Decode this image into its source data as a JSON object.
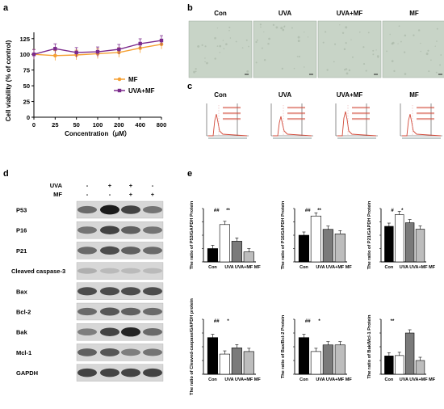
{
  "panel_labels": {
    "a": "a",
    "b": "b",
    "c": "c",
    "d": "d",
    "e": "e"
  },
  "colors": {
    "mf": "#f5a033",
    "uva_mf": "#7b2a8c",
    "micro_bg": "#c8d4c7",
    "flow": "#d24a3a"
  },
  "panel_a": {
    "ylabel": "Cell viability (% of control)",
    "xlabel": "Concentration（μM）",
    "yticks": [
      "0",
      "25",
      "50",
      "75",
      "100",
      "125"
    ],
    "xticks": [
      "0",
      "25",
      "50",
      "100",
      "200",
      "400",
      "800"
    ],
    "legend": [
      "MF",
      "UVA+MF"
    ]
  },
  "panel_b": {
    "titles": [
      "Con",
      "UVA",
      "UVA+MF",
      "MF"
    ]
  },
  "panel_c": {
    "titles": [
      "Con",
      "UVA",
      "UVA+MF",
      "MF"
    ]
  },
  "panel_d": {
    "treat_labels": [
      "UVA",
      "MF"
    ],
    "uva_signs": [
      "-",
      "+",
      "+",
      "-"
    ],
    "mf_signs": [
      "-",
      "-",
      "+",
      "+"
    ],
    "proteins": [
      "P53",
      "P16",
      "P21",
      "Cleaved caspase-3",
      "Bax",
      "Bcl-2",
      "Bak",
      "Mcl-1",
      "GAPDH"
    ]
  },
  "panel_e": {
    "categories": [
      "Con",
      "UVA",
      "UVA+MF",
      "MF"
    ]
  },
  "chart_data": [
    {
      "type": "line",
      "title": "",
      "xlabel": "Concentration（μM）",
      "ylabel": "Cell viability (% of control)",
      "x": [
        "0",
        "25",
        "50",
        "100",
        "200",
        "400",
        "800"
      ],
      "ylim": [
        0,
        135
      ],
      "series": [
        {
          "name": "MF",
          "values": [
            100,
            98,
            99,
            101,
            103,
            110,
            116
          ]
        },
        {
          "name": "UVA+MF",
          "values": [
            100,
            109,
            103,
            104,
            108,
            117,
            122
          ]
        }
      ]
    },
    {
      "type": "bar",
      "ylabel": "The ratio of P53/GAPDH Protein",
      "categories": [
        "Con",
        "UVA",
        "UVA+MF",
        "MF"
      ],
      "ylim": [
        0,
        4
      ],
      "values": [
        1.0,
        2.8,
        1.55,
        0.75
      ],
      "annotations": [
        "##",
        "**"
      ]
    },
    {
      "type": "bar",
      "ylabel": "The ratio of P16/GAPDH Protein",
      "categories": [
        "Con",
        "UVA",
        "UVA+MF",
        "MF"
      ],
      "ylim": [
        0,
        2
      ],
      "values": [
        1.0,
        1.72,
        1.22,
        1.05
      ],
      "annotations": [
        "##",
        "**"
      ]
    },
    {
      "type": "bar",
      "ylabel": "The ratio of P21/GAPDH Protein",
      "categories": [
        "Con",
        "UVA",
        "UVA+MF",
        "MF"
      ],
      "ylim": [
        0,
        1.5
      ],
      "values": [
        1.0,
        1.33,
        1.1,
        0.92
      ],
      "annotations": [
        "#",
        "*"
      ]
    },
    {
      "type": "bar",
      "ylabel": "The ratio of Cleaved-caspase/GAPDH protein",
      "categories": [
        "Con",
        "UVA",
        "UVA+MF",
        "MF"
      ],
      "ylim": [
        0,
        1.5
      ],
      "values": [
        1.0,
        0.55,
        0.72,
        0.62
      ],
      "annotations": [
        "##",
        "*"
      ]
    },
    {
      "type": "bar",
      "ylabel": "The ratio of Bax/Bcl-2 Protein",
      "categories": [
        "Con",
        "UVA",
        "UVA+MF",
        "MF"
      ],
      "ylim": [
        0,
        1.5
      ],
      "values": [
        1.0,
        0.62,
        0.8,
        0.8
      ],
      "annotations": [
        "##",
        "*"
      ]
    },
    {
      "type": "bar",
      "ylabel": "The ratio of Bak/Mcl-1 Protein",
      "categories": [
        "Con",
        "UVA",
        "UVA+MF",
        "MF"
      ],
      "ylim": [
        0,
        3
      ],
      "values": [
        1.0,
        1.02,
        2.25,
        0.75
      ],
      "annotations": [
        "**"
      ]
    }
  ]
}
